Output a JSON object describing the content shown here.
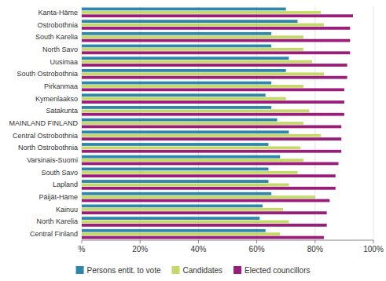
{
  "chart_data": {
    "type": "bar",
    "orientation": "horizontal",
    "categories": [
      "Kanta-Häme",
      "Ostrobothnia",
      "South Karelia",
      "North Savo",
      "Uusimaa",
      "South Ostrobothnia",
      "Pirkanmaa",
      "Kymenlaakso",
      "Satakunta",
      "MAINLAND FINLAND",
      "Central Ostrobothnia",
      "North Ostrobothnia",
      "Varsinais-Suomi",
      "South Savo",
      "Lapland",
      "Päijät-Häme",
      "Kainuu",
      "North Karelia",
      "Central Finland"
    ],
    "series": [
      {
        "name": "Persons entit. to vote",
        "color": "#2E86AB",
        "values": [
          70,
          74,
          65,
          65,
          71,
          70,
          65,
          63,
          65,
          67,
          71,
          64,
          68,
          64,
          64,
          65,
          62,
          61,
          63
        ]
      },
      {
        "name": "Candidates",
        "color": "#C5D96B",
        "values": [
          82,
          83,
          76,
          76,
          79,
          83,
          76,
          70,
          78,
          76,
          82,
          75,
          76,
          74,
          71,
          80,
          69,
          71,
          68
        ]
      },
      {
        "name": "Elected councillors",
        "color": "#9B1D7A",
        "values": [
          93,
          92,
          92,
          92,
          91,
          91,
          90,
          90,
          90,
          89,
          89,
          89,
          88,
          87,
          87,
          85,
          84,
          84,
          83
        ]
      }
    ],
    "xlim": [
      0,
      100
    ],
    "xticks": [
      {
        "value": 0,
        "label": "%"
      },
      {
        "value": 20,
        "label": "20%"
      },
      {
        "value": 40,
        "label": "40%"
      },
      {
        "value": 60,
        "label": "60%"
      },
      {
        "value": 80,
        "label": "80%"
      },
      {
        "value": 100,
        "label": "100%"
      }
    ],
    "grid": true,
    "legend": "bottom"
  }
}
